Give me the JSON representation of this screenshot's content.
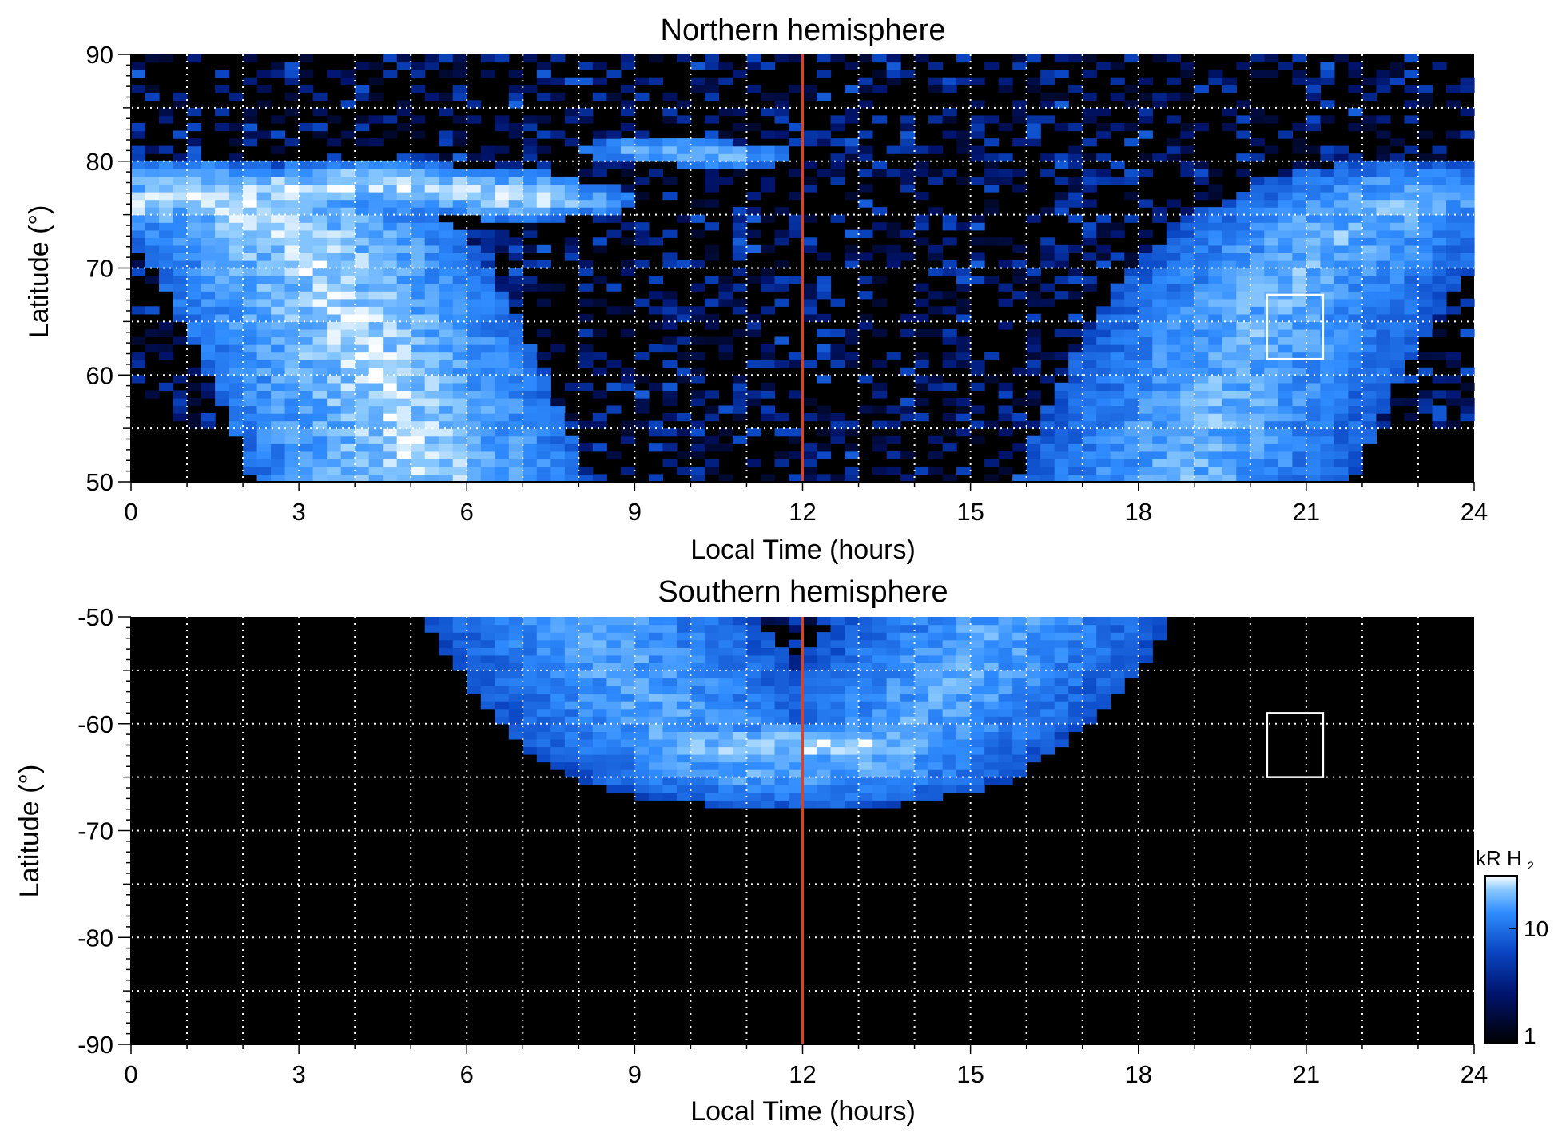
{
  "chart_data": [
    {
      "id": "north",
      "type": "heatmap",
      "title": "Northern hemisphere",
      "xlabel": "Local Time (hours)",
      "ylabel": "Latitude (°)",
      "xlim": [
        0,
        24
      ],
      "ylim": [
        50,
        90
      ],
      "x_ticks": [
        0,
        3,
        6,
        9,
        12,
        15,
        18,
        21,
        24
      ],
      "y_ticks": [
        50,
        60,
        70,
        80,
        90
      ],
      "grid": true,
      "grid_x_step": 1,
      "grid_y_step": 5,
      "background_color": "#000000",
      "noon_line": {
        "x": 12,
        "color": "#e0401a"
      },
      "highlight_box": {
        "x": [
          20.3,
          21.3
        ],
        "y": [
          61.5,
          67.5
        ],
        "color": "#ffffff"
      },
      "features": [
        {
          "name": "dawn arc",
          "points": [
            [
              0,
              76
            ],
            [
              1,
              77
            ],
            [
              2,
              76
            ],
            [
              3,
              73
            ],
            [
              3.6,
              68
            ],
            [
              4.3,
              61
            ],
            [
              4.8,
              55
            ],
            [
              5.2,
              50
            ]
          ],
          "width": 3,
          "intensity": 28
        },
        {
          "name": "upper dawn band",
          "points": [
            [
              2,
              77
            ],
            [
              4,
              78
            ],
            [
              6,
              77.5
            ],
            [
              7,
              76.5
            ]
          ],
          "width": 2,
          "intensity": 30
        },
        {
          "name": "morning spot",
          "points": [
            [
              9.2,
              81
            ],
            [
              10,
              80.8
            ],
            [
              10.6,
              80.5
            ]
          ],
          "width": 1.2,
          "intensity": 25
        },
        {
          "name": "dusk arc",
          "points": [
            [
              18.8,
              50
            ],
            [
              19.3,
              56
            ],
            [
              20,
              63
            ],
            [
              20.7,
              69
            ],
            [
              21.8,
              74
            ],
            [
              23,
              77
            ],
            [
              24,
              77
            ]
          ],
          "width": 3,
          "intensity": 22
        }
      ]
    },
    {
      "id": "south",
      "type": "heatmap",
      "title": "Southern hemisphere",
      "xlabel": "Local Time (hours)",
      "ylabel": "Latitude (°)",
      "xlim": [
        0,
        24
      ],
      "ylim": [
        -90,
        -50
      ],
      "x_ticks": [
        0,
        3,
        6,
        9,
        12,
        15,
        18,
        21,
        24
      ],
      "y_ticks": [
        -90,
        -80,
        -70,
        -60,
        -50
      ],
      "grid": true,
      "grid_x_step": 1,
      "grid_y_step": 5,
      "background_color": "#000000",
      "noon_line": {
        "x": 12,
        "color": "#e0401a"
      },
      "highlight_box": {
        "x": [
          20.3,
          21.3
        ],
        "y": [
          -65,
          -59
        ],
        "color": "#ffffff"
      },
      "features": [
        {
          "name": "oval",
          "points": [
            [
              8.2,
              -50
            ],
            [
              9,
              -56
            ],
            [
              10,
              -62
            ],
            [
              11,
              -64.5
            ],
            [
              12,
              -65
            ],
            [
              13,
              -64
            ],
            [
              14,
              -60
            ],
            [
              15,
              -55
            ],
            [
              15.6,
              -50
            ]
          ],
          "width": 3,
          "intensity": 20
        },
        {
          "name": "noon enhancement",
          "points": [
            [
              11,
              -62
            ],
            [
              12,
              -62
            ],
            [
              13,
              -62
            ]
          ],
          "width": 2,
          "intensity": 30
        }
      ]
    }
  ],
  "colorbar": {
    "title": "kR H",
    "title_subscript": "2",
    "scale": "log",
    "range": [
      1,
      30
    ],
    "tick_labels": [
      "10",
      "1"
    ],
    "tick_values": [
      10,
      1
    ]
  }
}
